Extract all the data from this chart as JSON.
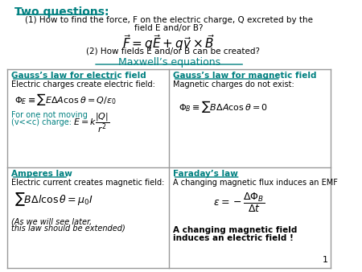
{
  "bg_color": "#ffffff",
  "teal": "#008080",
  "black": "#000000",
  "title": "Two questions:",
  "gauss_e_title": "Gauss’s law for electric field",
  "gauss_e_sub": "Electric charges create electric field:",
  "gauss_b_title": "Gauss’s law for magnetic field",
  "gauss_b_sub": "Magnetic charges do not exist:",
  "ampere_title": "Amperes law",
  "ampere_sub": "Electric current creates magnetic field:",
  "faraday_title": "Faraday’s law",
  "faraday_sub": "A changing magnetic flux induces an EMF",
  "page_num": "1"
}
